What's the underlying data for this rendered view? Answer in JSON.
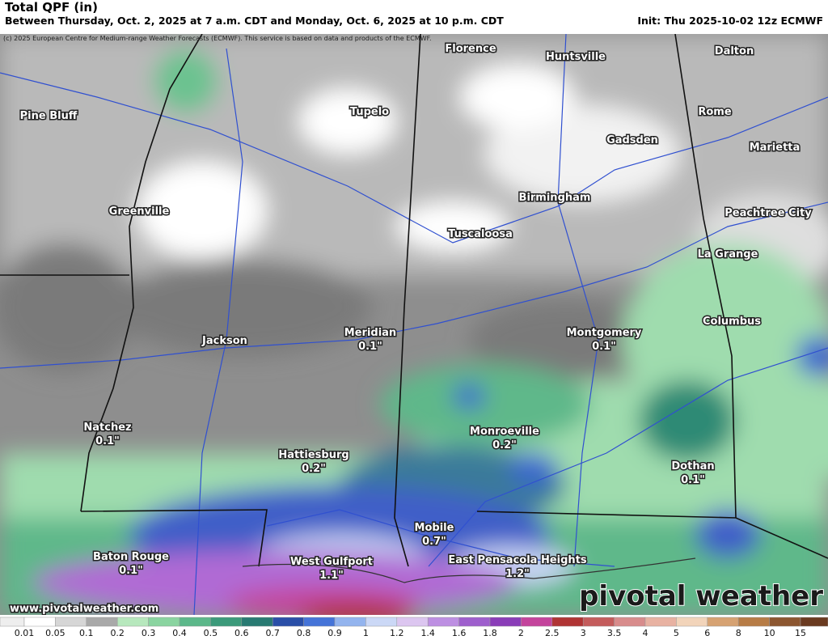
{
  "header": {
    "title": "Total QPF (in)",
    "subtitle": "Between Thursday, Oct. 2, 2025 at 7 a.m. CDT and Monday, Oct. 6, 2025 at 10 p.m. CDT",
    "init": "Init: Thu 2025-10-02 12z ECMWF",
    "copyright": "(c) 2025 European Centre for Medium-range Weather Forecasts (ECMWF). This service is based on data and products of the ECMWF."
  },
  "map": {
    "cities": [
      {
        "name": "Florence"
      },
      {
        "name": "Huntsville"
      },
      {
        "name": "Dalton"
      },
      {
        "name": "Pine Bluff"
      },
      {
        "name": "Tupelo"
      },
      {
        "name": "Rome"
      },
      {
        "name": "Gadsden"
      },
      {
        "name": "Marietta"
      },
      {
        "name": "Birmingham"
      },
      {
        "name": "Greenville"
      },
      {
        "name": "Peachtree City"
      },
      {
        "name": "Tuscaloosa"
      },
      {
        "name": "La Grange"
      },
      {
        "name": "Columbus"
      },
      {
        "name": "Jackson"
      },
      {
        "name": "Meridian",
        "value": "0.1\""
      },
      {
        "name": "Montgomery",
        "value": "0.1\""
      },
      {
        "name": "Natchez",
        "value": "0.1\""
      },
      {
        "name": "Monroeville",
        "value": "0.2\""
      },
      {
        "name": "Hattiesburg",
        "value": "0.2\""
      },
      {
        "name": "Dothan",
        "value": "0.1\""
      },
      {
        "name": "Mobile",
        "value": "0.7\""
      },
      {
        "name": "Baton Rouge",
        "value": "0.1\""
      },
      {
        "name": "West Gulfport",
        "value": "1.1\""
      },
      {
        "name": "East Pensacola Heights",
        "value": "1.2\""
      }
    ],
    "url": "www.pivotalweather.com",
    "watermark": "pivotal weather"
  },
  "legend": {
    "labels": [
      "0.01",
      "0.05",
      "0.1",
      "0.2",
      "0.3",
      "0.4",
      "0.5",
      "0.6",
      "0.7",
      "0.8",
      "0.9",
      "1",
      "1.2",
      "1.4",
      "1.6",
      "1.8",
      "2",
      "2.5",
      "3",
      "3.5",
      "4",
      "5",
      "6",
      "8",
      "10",
      "15"
    ],
    "colors": [
      "#ffffff",
      "#d6d6d6",
      "#a9a9a9",
      "#b7e8bd",
      "#8ad4a0",
      "#5cb88a",
      "#3b9a7a",
      "#287a72",
      "#2a4fa8",
      "#4574d8",
      "#93b4ee",
      "#cbd8f6",
      "#dcc6f0",
      "#bd8fe2",
      "#9e5fcd",
      "#8a3db8",
      "#c4449c",
      "#b03434",
      "#c45c5c",
      "#d88c8c",
      "#e8b2a2",
      "#f2d4ba",
      "#d6a272",
      "#b77c46",
      "#8c5630",
      "#6a3a20"
    ]
  }
}
